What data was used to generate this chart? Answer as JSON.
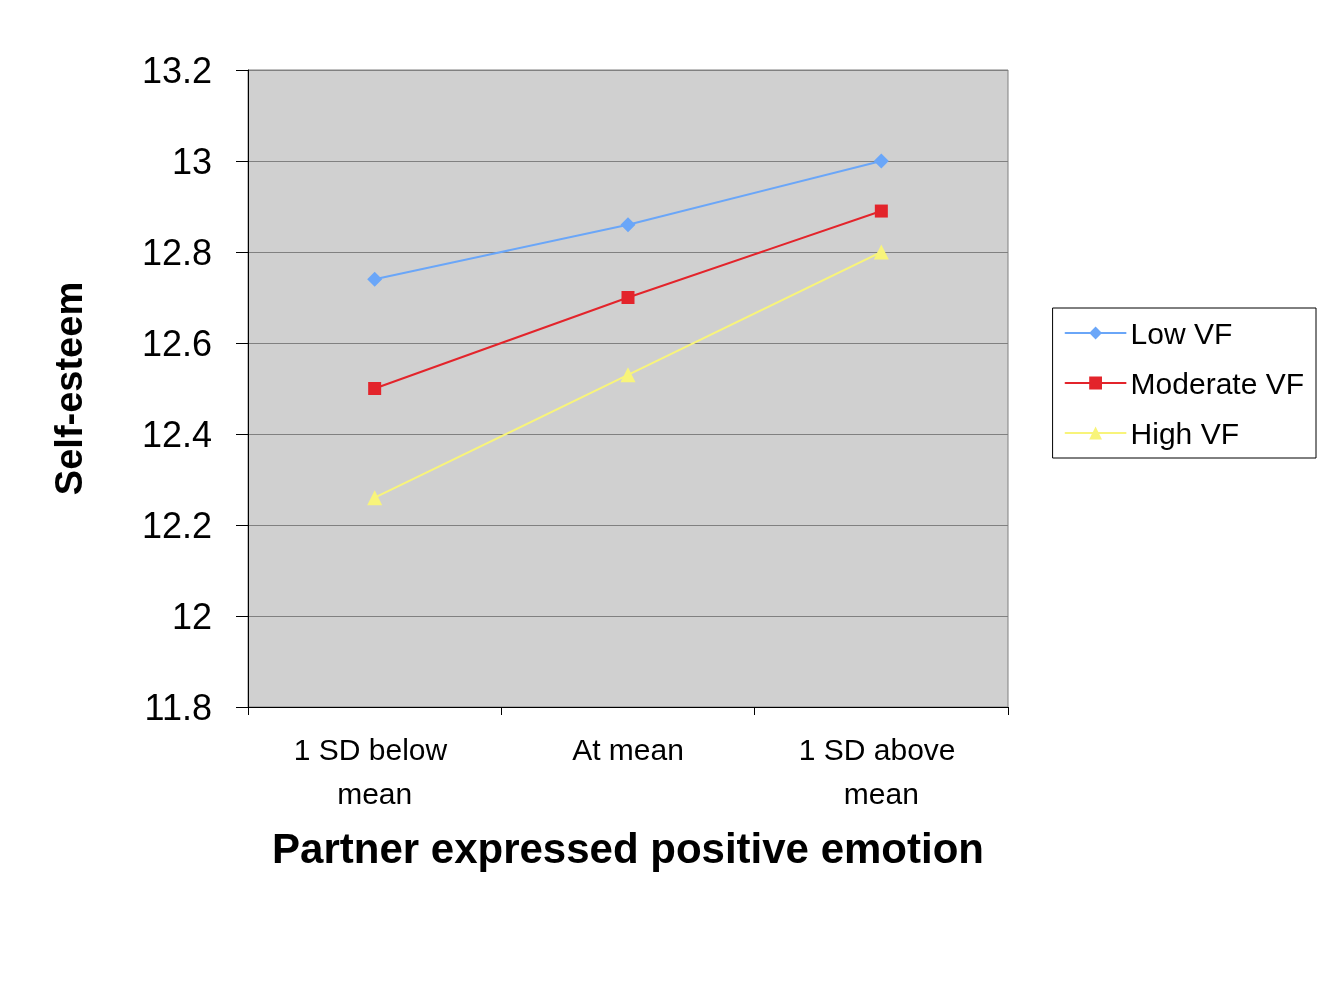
{
  "chart_data": {
    "type": "line",
    "xlabel": "Partner expressed positive emotion",
    "ylabel": "Self-esteem",
    "categories": [
      "1 SD below mean",
      "At mean",
      "1 SD above mean"
    ],
    "series": [
      {
        "name": "Low VF",
        "color": "#6aa6f8",
        "marker": "diamond",
        "values": [
          12.74,
          12.86,
          13.0
        ]
      },
      {
        "name": "Moderate VF",
        "color": "#e3242b",
        "marker": "square",
        "values": [
          12.5,
          12.7,
          12.89
        ]
      },
      {
        "name": "High VF",
        "color": "#f8f47a",
        "marker": "triangle",
        "values": [
          12.26,
          12.53,
          12.8
        ]
      }
    ],
    "ylim": [
      11.8,
      13.2
    ],
    "yticks": [
      11.8,
      12,
      12.2,
      12.4,
      12.6,
      12.8,
      13,
      13.2
    ],
    "grid": "y",
    "legend": "right",
    "line_style": "solid"
  }
}
